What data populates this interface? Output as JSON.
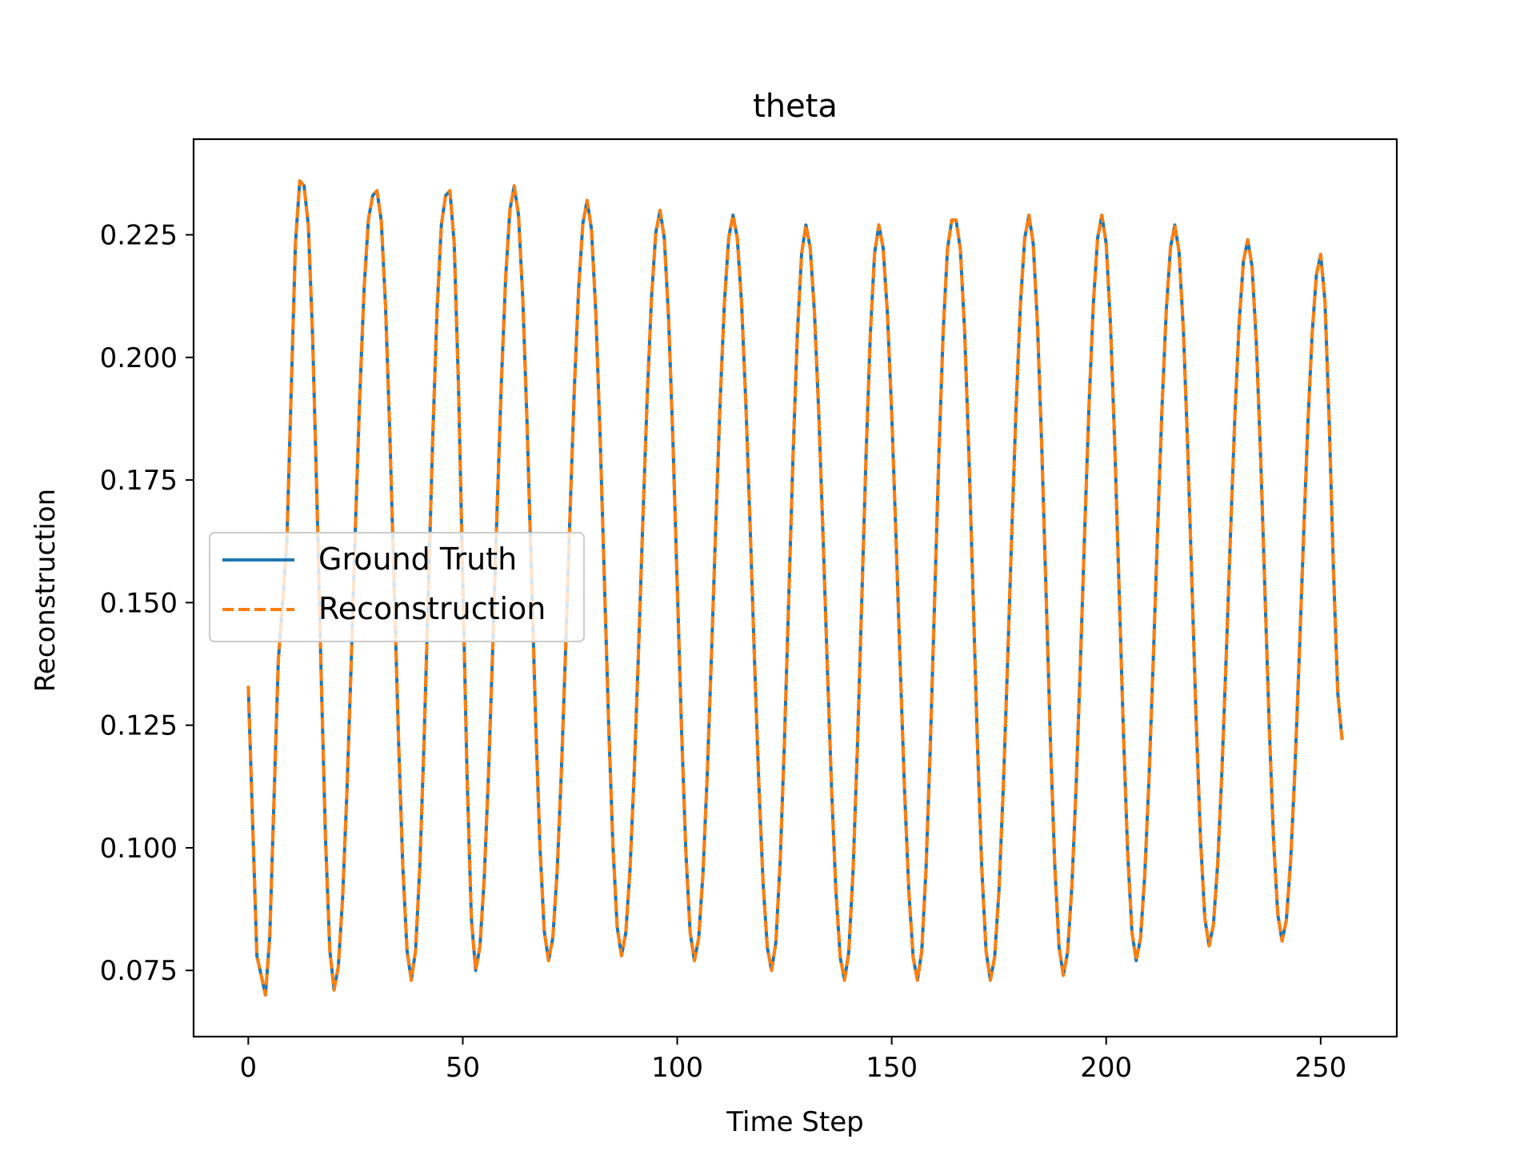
{
  "chart_data": {
    "type": "line",
    "title": "theta",
    "xlabel": "Time Step",
    "ylabel": "Reconstruction",
    "xlim": [
      -12.75,
      267.75
    ],
    "ylim": [
      0.0615,
      0.2445
    ],
    "xticks": [
      0,
      50,
      100,
      150,
      200,
      250
    ],
    "xtick_labels": [
      "0",
      "50",
      "100",
      "150",
      "200",
      "250"
    ],
    "yticks": [
      0.075,
      0.1,
      0.125,
      0.15,
      0.175,
      0.2,
      0.225
    ],
    "ytick_labels": [
      "0.075",
      "0.100",
      "0.125",
      "0.150",
      "0.175",
      "0.200",
      "0.225"
    ],
    "grid": false,
    "legend": {
      "position": "center-left"
    },
    "period": 16.9,
    "points": [
      [
        0,
        0.133
      ],
      [
        2,
        0.078
      ],
      [
        4,
        0.07
      ],
      [
        8,
        0.15
      ],
      [
        12,
        0.236
      ],
      [
        13,
        0.235
      ],
      [
        20,
        0.071
      ],
      [
        29,
        0.233
      ],
      [
        30,
        0.234
      ],
      [
        38,
        0.073
      ],
      [
        46,
        0.233
      ],
      [
        47,
        0.234
      ],
      [
        53,
        0.075
      ],
      [
        62,
        0.235
      ],
      [
        70,
        0.077
      ],
      [
        79,
        0.232
      ],
      [
        87,
        0.078
      ],
      [
        96,
        0.23
      ],
      [
        104,
        0.077
      ],
      [
        113,
        0.229
      ],
      [
        122,
        0.075
      ],
      [
        130,
        0.227
      ],
      [
        139,
        0.073
      ],
      [
        147,
        0.227
      ],
      [
        156,
        0.073
      ],
      [
        164,
        0.228
      ],
      [
        165,
        0.228
      ],
      [
        173,
        0.073
      ],
      [
        182,
        0.229
      ],
      [
        190,
        0.074
      ],
      [
        199,
        0.229
      ],
      [
        207,
        0.077
      ],
      [
        216,
        0.227
      ],
      [
        224,
        0.08
      ],
      [
        233,
        0.224
      ],
      [
        241,
        0.081
      ],
      [
        250,
        0.221
      ],
      [
        255,
        0.122
      ]
    ],
    "series": [
      {
        "name": "Ground Truth",
        "color": "#1f77b4",
        "style": "solid"
      },
      {
        "name": "Reconstruction",
        "color": "#ff7f0e",
        "style": "dashed"
      }
    ]
  }
}
